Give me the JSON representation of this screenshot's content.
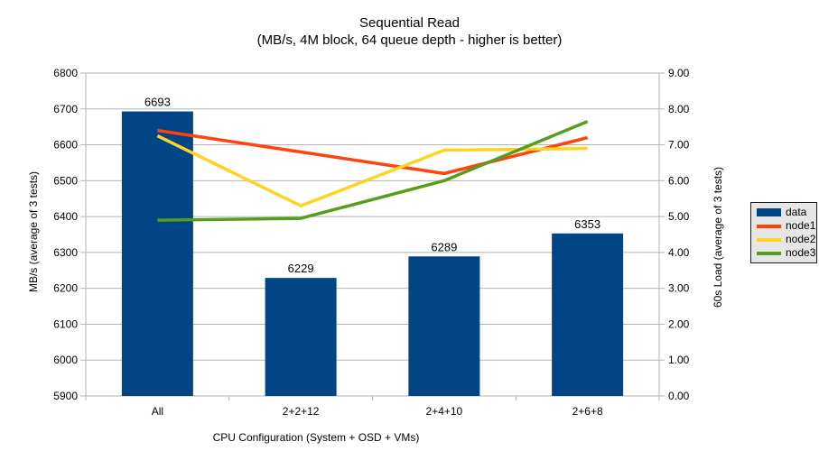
{
  "title": {
    "line1": "Sequential Read",
    "line2": "(MB/s, 4M block, 64 queue depth - higher is better)"
  },
  "chart_data": {
    "type": "combo bar + line",
    "categories": [
      "All",
      "2+2+12",
      "2+4+10",
      "2+6+8"
    ],
    "bar_series": {
      "name": "data",
      "axis": "left",
      "color": "#004586",
      "values": [
        6693,
        6229,
        6289,
        6353
      ],
      "value_labels": [
        "6693",
        "6229",
        "6289",
        "6353"
      ]
    },
    "line_series": [
      {
        "name": "node1",
        "axis": "right",
        "color": "#FF420E",
        "values": [
          7.4,
          6.8,
          6.2,
          7.2
        ]
      },
      {
        "name": "node2",
        "axis": "right",
        "color": "#FFD320",
        "values": [
          7.25,
          5.3,
          6.85,
          6.9
        ]
      },
      {
        "name": "node3",
        "axis": "right",
        "color": "#579D1C",
        "values": [
          4.9,
          4.95,
          6.0,
          7.65
        ]
      }
    ],
    "left_axis": {
      "title": "MB/s (average of 3 tests)",
      "min": 5900,
      "max": 6800,
      "step": 100,
      "tick_labels": [
        "5900",
        "6000",
        "6100",
        "6200",
        "6300",
        "6400",
        "6500",
        "6600",
        "6700",
        "6800"
      ]
    },
    "right_axis": {
      "title": "60s Load (average of 3 tests)",
      "min": 0,
      "max": 9,
      "step": 1,
      "tick_labels": [
        "0.00",
        "1.00",
        "2.00",
        "3.00",
        "4.00",
        "5.00",
        "6.00",
        "7.00",
        "8.00",
        "9.00"
      ]
    },
    "x_axis": {
      "title": "CPU Configuration (System + OSD + VMs)"
    },
    "legend": {
      "position": "right",
      "entries": [
        {
          "label": "data",
          "type": "bar",
          "color": "#004586"
        },
        {
          "label": "node1",
          "type": "line",
          "color": "#FF420E"
        },
        {
          "label": "node2",
          "type": "line",
          "color": "#FFD320"
        },
        {
          "label": "node3",
          "type": "line",
          "color": "#579D1C"
        }
      ]
    },
    "grid": {
      "horizontal": true,
      "vertical": false
    },
    "colors": {
      "grid": "#b3b3b3",
      "axis": "#b3b3b3",
      "text": "#000000",
      "legend_bg": "#e6e6e6",
      "background": "#ffffff"
    }
  }
}
